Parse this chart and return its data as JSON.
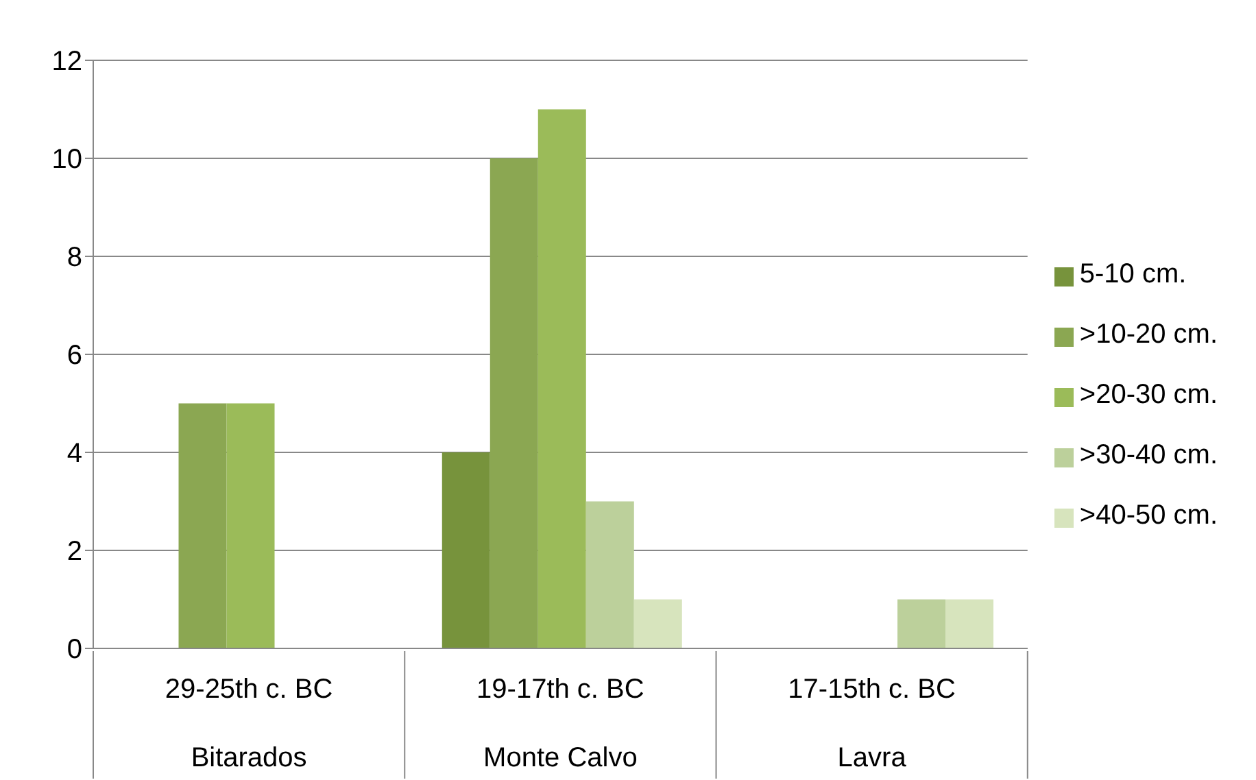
{
  "chart_data": {
    "type": "bar",
    "categories": [
      "29-25th c. BC\nBitarados",
      "19-17th c. BC\nMonte Calvo",
      "17-15th c. BC\nLavra"
    ],
    "series": [
      {
        "name": "5-10 cm.",
        "color": "#77933c",
        "values": [
          0,
          4,
          0
        ]
      },
      {
        "name": ">10-20 cm.",
        "color": "#8ba752",
        "values": [
          5,
          10,
          0
        ]
      },
      {
        "name": ">20-30 cm.",
        "color": "#9bbb59",
        "values": [
          5,
          11,
          0
        ]
      },
      {
        "name": ">30-40 cm.",
        "color": "#bcd09b",
        "values": [
          0,
          3,
          1
        ]
      },
      {
        "name": ">40-50 cm.",
        "color": "#d7e4bd",
        "values": [
          0,
          1,
          1
        ]
      }
    ],
    "ylim": [
      0,
      12
    ],
    "yticks": [
      0,
      2,
      4,
      6,
      8,
      10,
      12
    ],
    "grid": "y",
    "legend": "right"
  }
}
